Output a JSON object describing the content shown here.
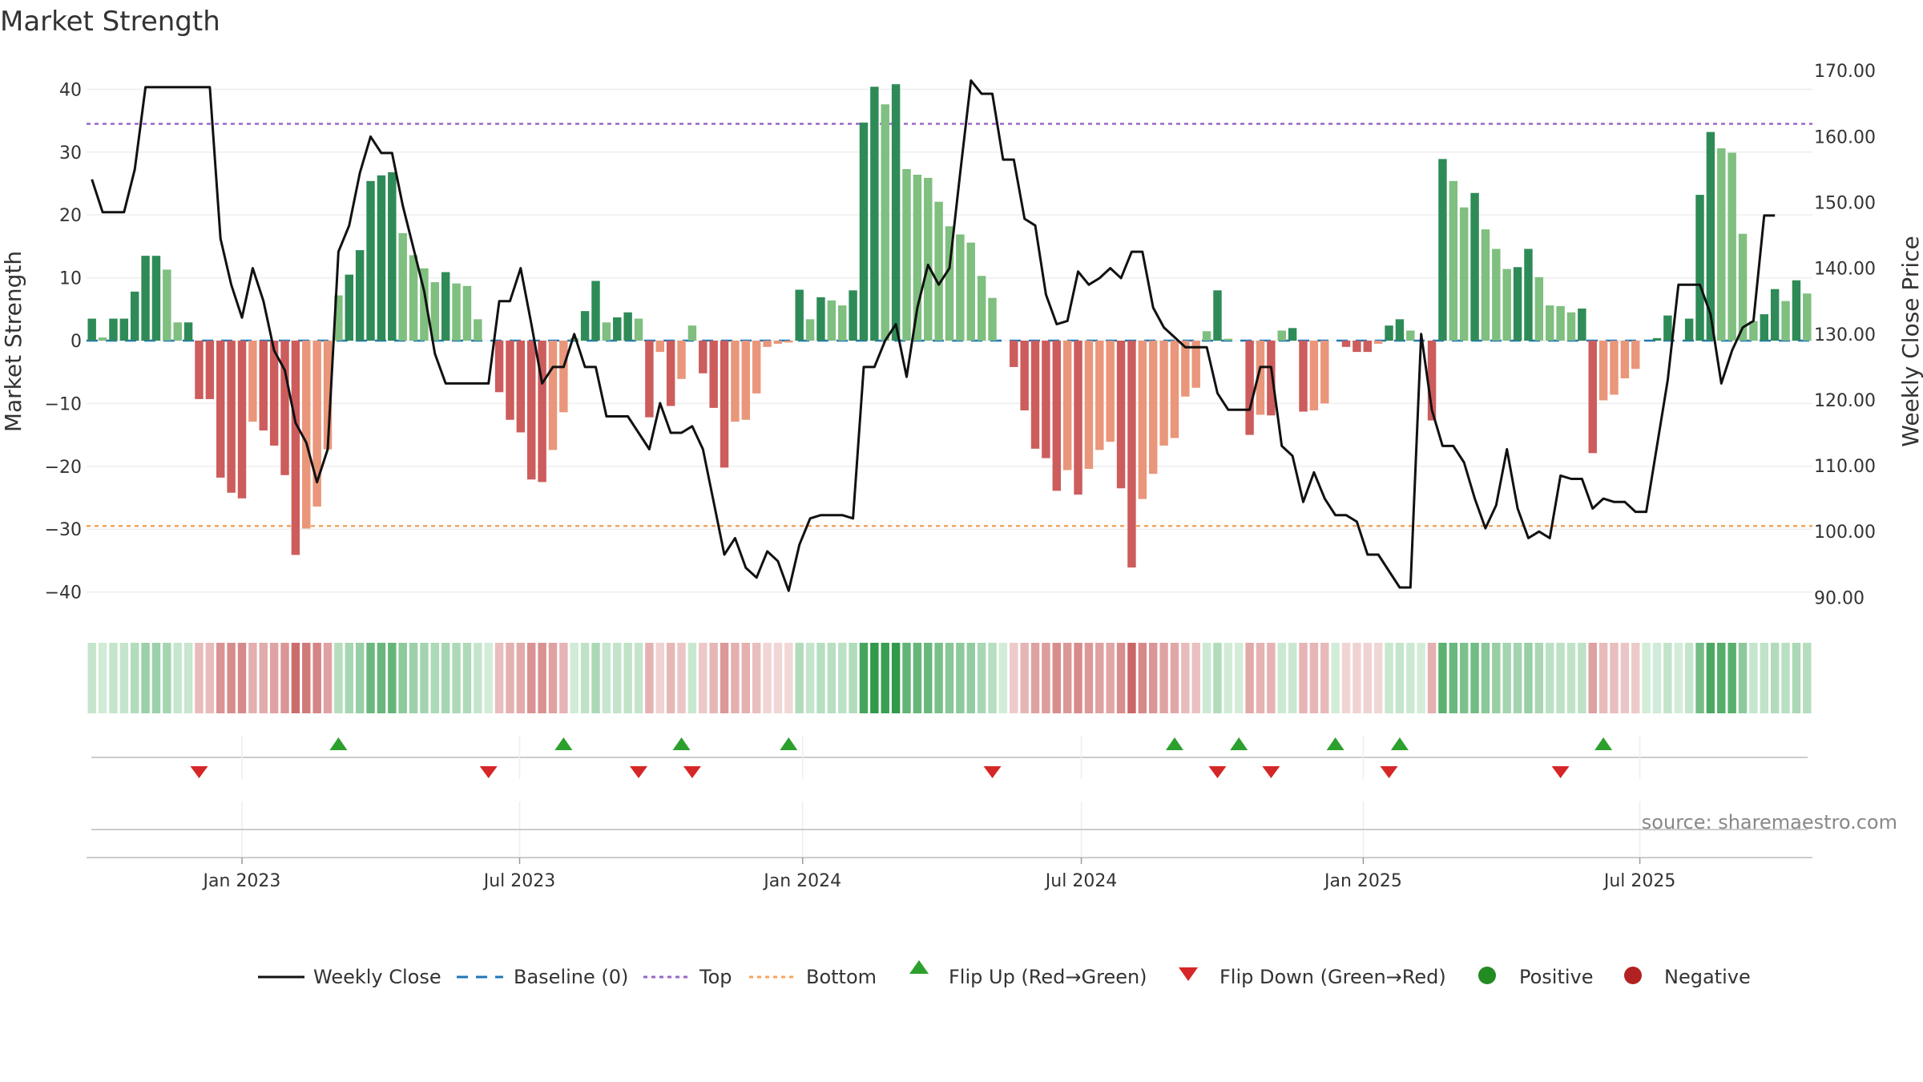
{
  "chart_data": {
    "type": "bar",
    "title": "Market Strength",
    "ylabel": "Market Strength",
    "y2label": "Weekly Close Price",
    "ylim": [
      -44,
      44
    ],
    "y2lim": [
      87,
      171
    ],
    "y_ticks": [
      -40,
      -30,
      -20,
      -10,
      0,
      10,
      20,
      30,
      40
    ],
    "y_tick_labels": [
      "−40",
      "−30",
      "−20",
      "−10",
      "0",
      "10",
      "20",
      "30",
      "40"
    ],
    "y2_ticks": [
      90,
      100,
      110,
      120,
      130,
      140,
      150,
      160,
      170
    ],
    "y2_tick_labels": [
      "90.00",
      "100.00",
      "110.00",
      "120.00",
      "130.00",
      "140.00",
      "150.00",
      "160.00",
      "170.00"
    ],
    "x_start": "2022-09-26",
    "x_ticks": [
      {
        "label": "Jan 2023",
        "week": 14.0
      },
      {
        "label": "Jul 2023",
        "week": 39.9
      },
      {
        "label": "Jan 2024",
        "week": 66.3
      },
      {
        "label": "Jul 2024",
        "week": 92.3
      },
      {
        "label": "Jan 2025",
        "week": 118.6
      },
      {
        "label": "Jul 2025",
        "week": 144.4
      }
    ],
    "top_line": 34.5,
    "bottom_line": -29.5,
    "strength": [
      3.5,
      0.5,
      3.5,
      3.5,
      7.8,
      13.5,
      13.5,
      11.3,
      2.9,
      2.9,
      -9.3,
      -9.3,
      -21.8,
      -24.2,
      -25.1,
      -12.9,
      -14.3,
      -16.7,
      -21.4,
      -34.1,
      -29.9,
      -26.4,
      -17.3,
      7.2,
      10.5,
      14.4,
      25.4,
      26.3,
      26.8,
      17.1,
      13.6,
      11.5,
      9.3,
      10.9,
      9.1,
      8.7,
      3.4,
      0.0,
      -8.2,
      -12.6,
      -14.6,
      -22.1,
      -22.5,
      -17.4,
      -11.4,
      0.4,
      4.7,
      9.5,
      2.9,
      3.7,
      4.5,
      3.5,
      -12.2,
      -1.8,
      -10.4,
      -6.1,
      2.4,
      -5.2,
      -10.7,
      -20.2,
      -12.9,
      -12.6,
      -8.4,
      -1.0,
      -0.5,
      -0.3,
      8.1,
      3.4,
      6.9,
      6.4,
      5.6,
      8.0,
      34.7,
      40.4,
      37.6,
      40.8,
      27.3,
      26.4,
      25.9,
      22.1,
      18.2,
      16.9,
      15.6,
      10.3,
      6.8,
      0.0,
      -4.2,
      -11.1,
      -17.2,
      -18.7,
      -23.9,
      -20.6,
      -24.5,
      -20.4,
      -17.4,
      -16.1,
      -23.5,
      -36.1,
      -25.2,
      -21.2,
      -16.7,
      -15.5,
      -8.9,
      -7.5,
      1.5,
      8.0,
      0.3,
      0.0,
      -15.0,
      -11.8,
      -11.9,
      1.6,
      2.0,
      -11.3,
      -11.1,
      -10.0,
      0.0,
      -1.0,
      -1.8,
      -1.8,
      -0.5,
      2.4,
      3.4,
      1.6,
      0.0,
      -12.7,
      28.9,
      25.4,
      21.2,
      23.5,
      17.7,
      14.6,
      11.4,
      11.7,
      14.6,
      10.1,
      5.6,
      5.5,
      4.5,
      5.1,
      -17.9,
      -9.5,
      -8.6,
      -6.0,
      -4.5,
      0.0,
      0.4,
      4.0,
      0.0,
      3.5,
      23.2,
      33.2,
      30.6,
      29.9,
      17.0,
      3.1,
      4.2,
      8.2,
      6.3,
      9.6,
      7.5
    ],
    "weekly_close": [
      153.5,
      148.5,
      148.5,
      148.5,
      155.0,
      167.5,
      167.5,
      167.5,
      167.5,
      167.5,
      167.5,
      167.5,
      144.5,
      137.5,
      132.5,
      140.0,
      135.0,
      127.5,
      124.5,
      116.5,
      113.5,
      107.5,
      112.5,
      142.5,
      146.5,
      154.5,
      160.0,
      157.5,
      157.5,
      149.5,
      143.0,
      136.5,
      127.0,
      122.5,
      122.5,
      122.5,
      122.5,
      122.5,
      135.0,
      135.0,
      140.0,
      131.5,
      122.5,
      125.0,
      125.0,
      130.0,
      125.0,
      125.0,
      117.5,
      117.5,
      117.5,
      115.0,
      112.5,
      119.5,
      115.0,
      115.0,
      116.0,
      112.5,
      104.5,
      96.5,
      99.0,
      94.5,
      93.0,
      97.0,
      95.5,
      91.0,
      98.0,
      102.0,
      102.5,
      102.5,
      102.5,
      102.0,
      125.0,
      125.0,
      129.0,
      131.5,
      123.5,
      134.0,
      140.5,
      137.5,
      140.0,
      154.5,
      168.5,
      166.5,
      166.5,
      156.5,
      156.5,
      147.5,
      146.5,
      136.0,
      131.5,
      132.0,
      139.5,
      137.5,
      138.5,
      140.0,
      138.5,
      142.5,
      142.5,
      134.0,
      131.0,
      129.5,
      128.0,
      128.0,
      128.0,
      121.0,
      118.5,
      118.5,
      118.5,
      125.0,
      125.0,
      113.0,
      111.5,
      104.5,
      109.0,
      105.0,
      102.5,
      102.5,
      101.5,
      96.5,
      96.5,
      94.0,
      91.5,
      91.5,
      130.0,
      118.5,
      113.0,
      113.0,
      110.5,
      105.0,
      100.5,
      104.0,
      112.5,
      103.5,
      99.0,
      100.0,
      99.0,
      108.5,
      108.0,
      108.0,
      103.5,
      105.0,
      104.5,
      104.5,
      103.0,
      103.0,
      113.0,
      123.0,
      137.5,
      137.5,
      137.5,
      133.0,
      122.5,
      127.5,
      131.0,
      132.0,
      148.0,
      148.0
    ],
    "heat_strip": "weekly strength colour band",
    "flip_up_weeks": [
      23,
      44,
      55,
      65,
      101,
      107,
      116,
      122,
      141
    ],
    "flip_down_weeks": [
      10,
      37,
      51,
      56,
      84,
      105,
      110,
      121,
      137
    ],
    "legend": [
      "Weekly Close",
      "Baseline (0)",
      "Top",
      "Bottom",
      "Flip Up (Red→Green)",
      "Flip Down (Green→Red)",
      "Positive",
      "Negative"
    ],
    "legend_position": "bottom",
    "annotation": "source: sharemaestro.com"
  },
  "colors": {
    "pos_dark": "#2e8b57",
    "pos_light": "#7fbf7f",
    "neg_dark": "#cd5c5c",
    "neg_light": "#e9967a",
    "price_line": "#111111",
    "baseline": "#1f77b4",
    "top_line": "#9966cc",
    "bottom_line": "#f4a460",
    "flip_up": "#2ca02c",
    "flip_down": "#d62728",
    "positive_dot": "#228b22",
    "negative_dot": "#b22222",
    "grid": "#eeeeee",
    "axis": "#cccccc"
  }
}
